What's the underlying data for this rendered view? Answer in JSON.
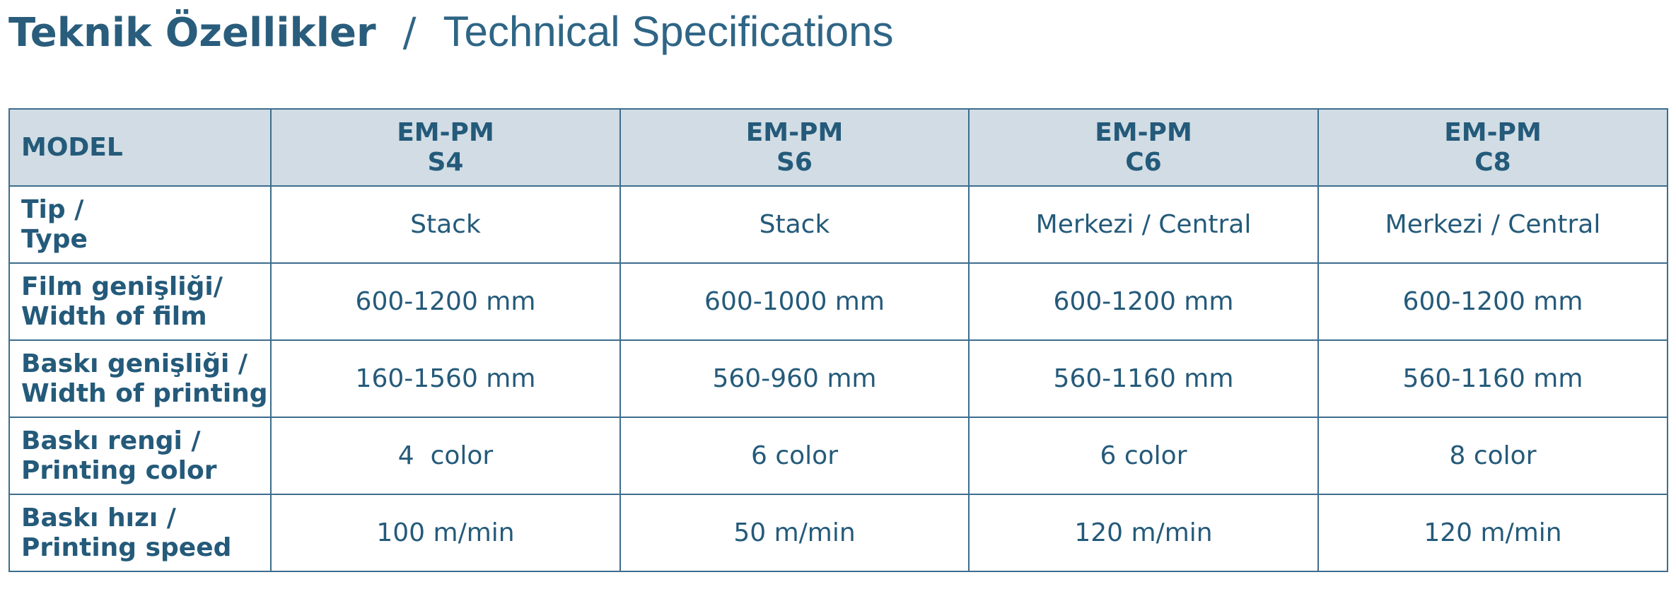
{
  "header": {
    "title_tr": "Teknik Özellikler",
    "separator": "/",
    "title_en": "Technical Specifications"
  },
  "table": {
    "columns": [
      [
        "MODEL"
      ],
      [
        "EM-PM",
        "S4"
      ],
      [
        "EM-PM",
        "S6"
      ],
      [
        "EM-PM",
        "C6"
      ],
      [
        "EM-PM",
        "C8"
      ]
    ],
    "rows": [
      [
        [
          "Tip /",
          "Type"
        ],
        "Stack",
        "Stack",
        "Merkezi / Central",
        "Merkezi / Central"
      ],
      [
        [
          "Film genişliği/",
          "Width of film"
        ],
        "600-1200 mm",
        "600-1000 mm",
        "600-1200 mm",
        "600-1200 mm"
      ],
      [
        [
          "Baskı genişliği /",
          "Width of printing"
        ],
        "160-1560 mm",
        "560-960 mm",
        "560-1160 mm",
        "560-1160 mm"
      ],
      [
        [
          "Baskı rengi /",
          "Printing color"
        ],
        "4  color",
        "6 color",
        "6 color",
        "8 color"
      ],
      [
        [
          "Baskı hızı /",
          "Printing speed"
        ],
        "100 m/min",
        "50 m/min",
        "120 m/min",
        "120 m/min"
      ]
    ]
  }
}
